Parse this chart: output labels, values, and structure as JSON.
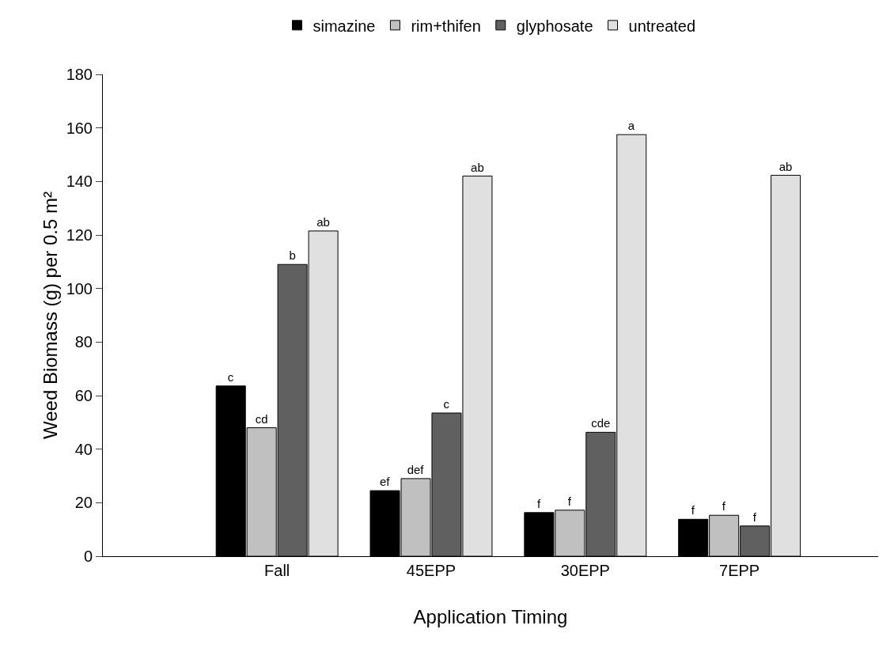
{
  "chart_data": {
    "type": "bar",
    "xlabel": "Application Timing",
    "ylabel": "Weed Biomass (g) per 0.5 m²",
    "categories": [
      "Fall",
      "45EPP",
      "30EPP",
      "7EPP"
    ],
    "series": [
      {
        "name": "simazine",
        "color": "#000000",
        "values": [
          63.6,
          24.5,
          16.3,
          13.8
        ],
        "value_labels": [
          "c",
          "ef",
          "f",
          "f"
        ]
      },
      {
        "name": "rim+thifen",
        "color": "#c0c0c0",
        "values": [
          48,
          29,
          17.2,
          15.3
        ],
        "value_labels": [
          "cd",
          "def",
          "f",
          "f"
        ]
      },
      {
        "name": "glyphosate",
        "color": "#606060",
        "values": [
          109,
          53.5,
          46.3,
          11.3
        ],
        "value_labels": [
          "b",
          "c",
          "cde",
          "f"
        ]
      },
      {
        "name": "untreated",
        "color": "#e0e0e0",
        "values": [
          121.5,
          142,
          157.5,
          142.3
        ],
        "value_labels": [
          "ab",
          "ab",
          "a",
          "ab"
        ]
      }
    ],
    "ylim": [
      0,
      180
    ],
    "yticks": [
      0,
      20,
      40,
      60,
      80,
      100,
      120,
      140,
      160,
      180
    ],
    "grid": false,
    "legend": "top"
  }
}
